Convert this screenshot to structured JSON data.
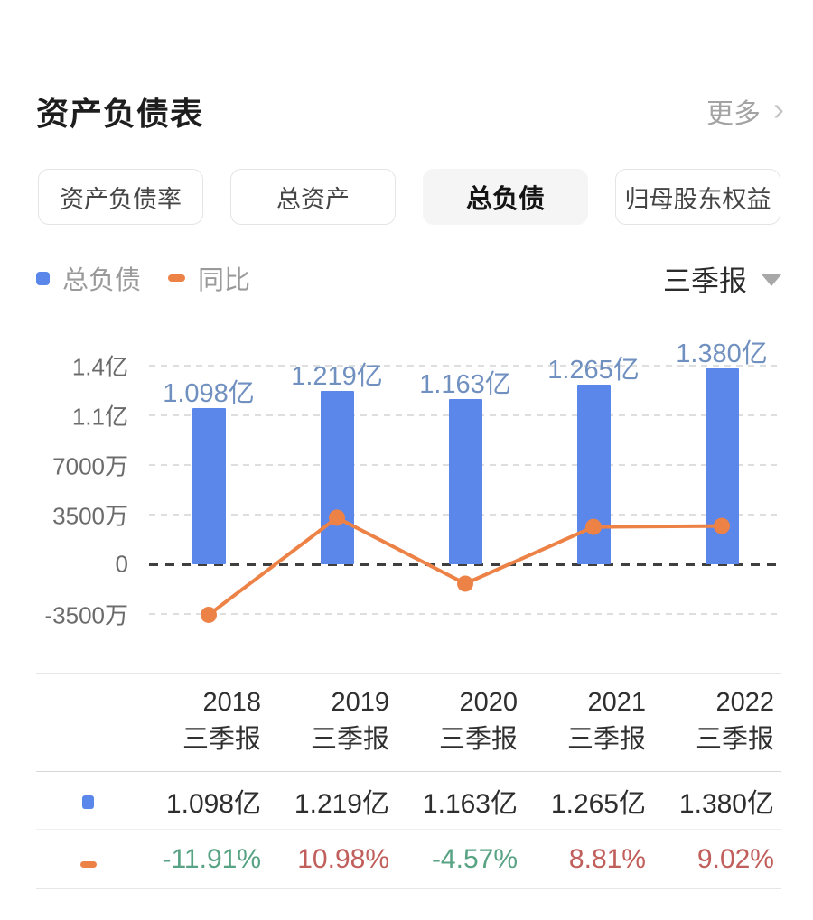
{
  "header": {
    "title": "资产负债表",
    "more_label": "更多",
    "chevron": "›"
  },
  "tabs": [
    {
      "key": "debt-ratio",
      "label": "资产负债率",
      "active": false
    },
    {
      "key": "total-assets",
      "label": "总资产",
      "active": false
    },
    {
      "key": "total-liabilities",
      "label": "总负债",
      "active": true
    },
    {
      "key": "parent-equity",
      "label": "归母股东权益",
      "active": false
    }
  ],
  "legend": [
    {
      "key": "total-liabilities",
      "label": "总负债",
      "swatch": "square",
      "color": "#5b86ea"
    },
    {
      "key": "yoy",
      "label": "同比",
      "swatch": "dash",
      "color": "#ed8247"
    }
  ],
  "period_selector": {
    "label": "三季报"
  },
  "chart_data": {
    "type": "bar+line",
    "categories": [
      "2018三季报",
      "2019三季报",
      "2020三季报",
      "2021三季报",
      "2022三季报"
    ],
    "series": [
      {
        "name": "总负债",
        "type": "bar",
        "unit": "亿",
        "color": "#5b86ea",
        "values": [
          1.098,
          1.219,
          1.163,
          1.265,
          1.38
        ],
        "labels": [
          "1.098亿",
          "1.219亿",
          "1.163亿",
          "1.265亿",
          "1.380亿"
        ]
      },
      {
        "name": "同比",
        "type": "line",
        "unit": "%",
        "color": "#ed8247",
        "values": [
          -11.91,
          10.98,
          -4.57,
          8.81,
          9.02
        ],
        "labels": [
          "-11.91%",
          "10.98%",
          "-4.57%",
          "8.81%",
          "9.02%"
        ]
      }
    ],
    "y_axis": {
      "tick_labels": [
        "1.4亿",
        "1.1亿",
        "7000万",
        "3500万",
        "0",
        "-3500万"
      ],
      "top_tick_value_yi": 1.4,
      "grid": "dashed",
      "zero_line": "dark-dashed"
    },
    "legend_position": "top-left",
    "bar_label_color": "#7090c0"
  },
  "table": {
    "columns": [
      [
        "2018",
        "三季报"
      ],
      [
        "2019",
        "三季报"
      ],
      [
        "2020",
        "三季报"
      ],
      [
        "2021",
        "三季报"
      ],
      [
        "2022",
        "三季报"
      ]
    ],
    "rows": [
      {
        "key": "total-liabilities",
        "swatch": "square",
        "color": "#5b86ea",
        "values": [
          "1.098亿",
          "1.219亿",
          "1.163亿",
          "1.265亿",
          "1.380亿"
        ],
        "value_colors": [
          "#2e2e2e",
          "#2e2e2e",
          "#2e2e2e",
          "#2e2e2e",
          "#2e2e2e"
        ]
      },
      {
        "key": "yoy",
        "swatch": "dash",
        "color": "#ed8247",
        "values": [
          "-11.91%",
          "10.98%",
          "-4.57%",
          "8.81%",
          "9.02%"
        ],
        "value_colors": [
          "#58a384",
          "#c05f5c",
          "#58a384",
          "#c05f5c",
          "#c05f5c"
        ]
      }
    ]
  }
}
